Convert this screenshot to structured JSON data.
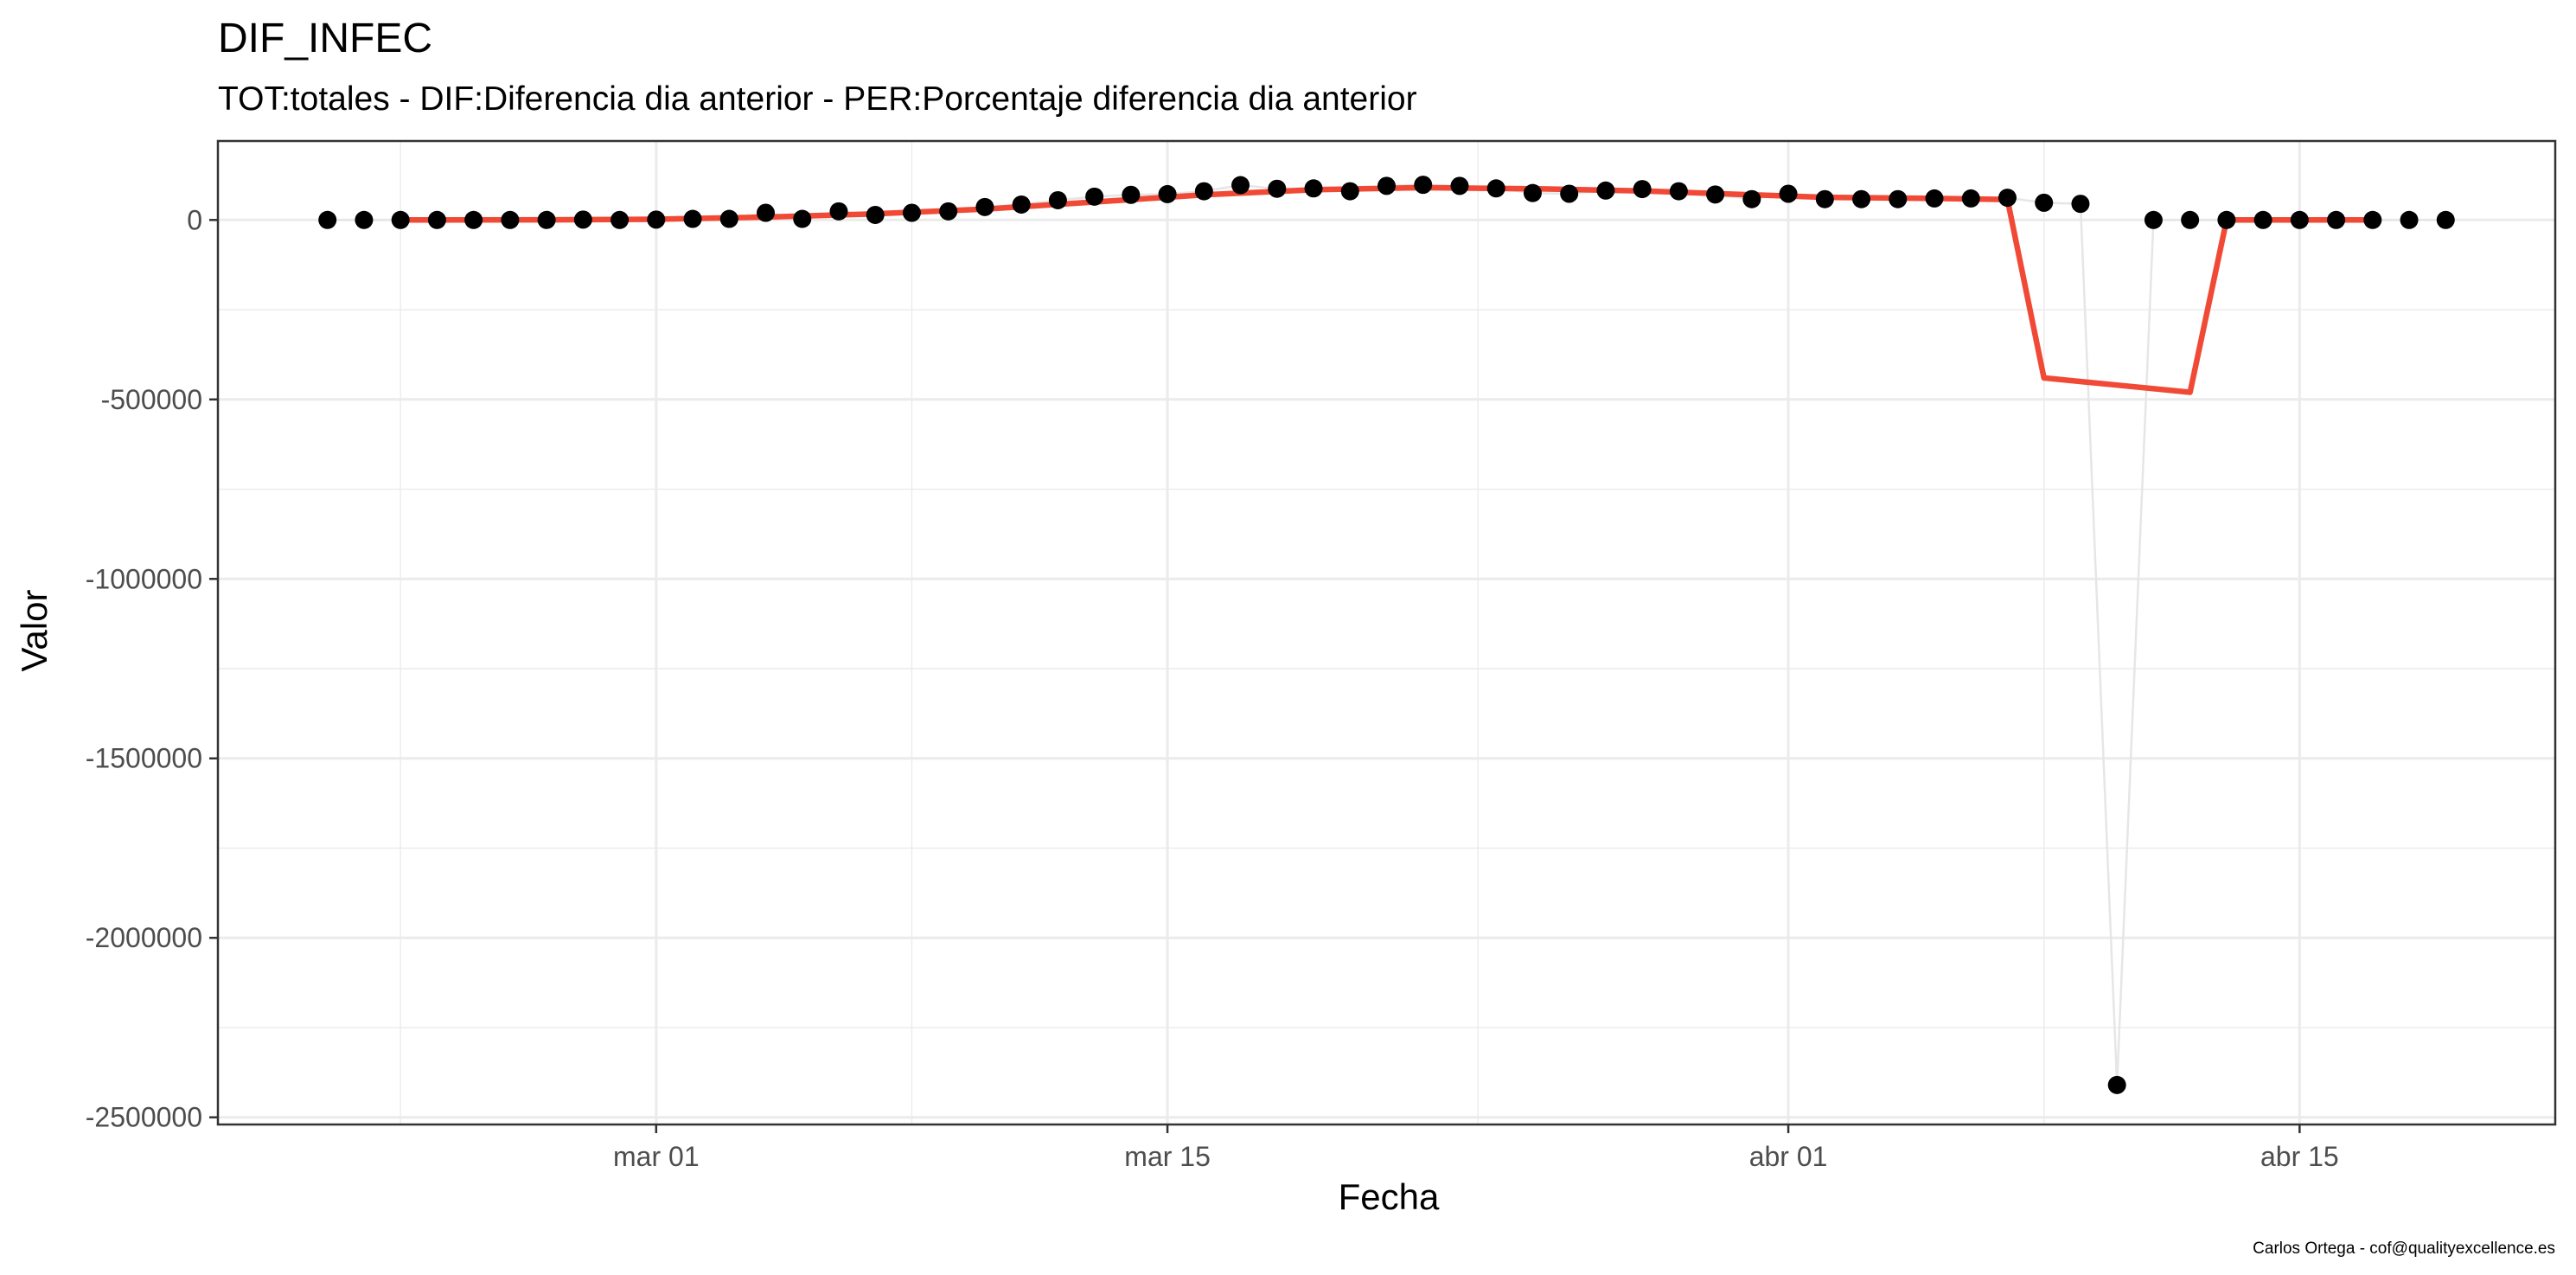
{
  "chart_data": {
    "type": "scatter",
    "title": "DIF_INFEC",
    "subtitle": "TOT:totales - DIF:Diferencia dia anterior - PER:Porcentaje diferencia dia anterior",
    "xlabel": "Fecha",
    "ylabel": "Valor",
    "caption": "Carlos Ortega - cof@qualityexcellence.es",
    "xlim": [
      "2020-02-18",
      "2020-04-22"
    ],
    "ylim": [
      -2520000,
      220000
    ],
    "x_ticks": [
      {
        "value": "2020-03-01",
        "label": "mar 01"
      },
      {
        "value": "2020-03-15",
        "label": "mar 15"
      },
      {
        "value": "2020-04-01",
        "label": "abr 01"
      },
      {
        "value": "2020-04-15",
        "label": "abr 15"
      }
    ],
    "y_ticks": [
      {
        "value": 0,
        "label": "0"
      },
      {
        "value": -500000,
        "label": "-500000"
      },
      {
        "value": -1000000,
        "label": "-1000000"
      },
      {
        "value": -1500000,
        "label": "-1500000"
      },
      {
        "value": -2000000,
        "label": "-2000000"
      },
      {
        "value": -2500000,
        "label": "-2500000"
      }
    ],
    "grid": true,
    "colors": {
      "points": "#000000",
      "connector": "#e6e6e6",
      "smooth": "#f04a37",
      "grid": "#ebebeb",
      "panel_border": "#333333"
    },
    "series": [
      {
        "kind": "points",
        "x": [
          "2020-02-21",
          "2020-02-22",
          "2020-02-23",
          "2020-02-24",
          "2020-02-25",
          "2020-02-26",
          "2020-02-27",
          "2020-02-28",
          "2020-02-29",
          "2020-03-01",
          "2020-03-02",
          "2020-03-03",
          "2020-03-04",
          "2020-03-05",
          "2020-03-06",
          "2020-03-07",
          "2020-03-08",
          "2020-03-09",
          "2020-03-10",
          "2020-03-11",
          "2020-03-12",
          "2020-03-13",
          "2020-03-14",
          "2020-03-15",
          "2020-03-16",
          "2020-03-17",
          "2020-03-18",
          "2020-03-19",
          "2020-03-20",
          "2020-03-21",
          "2020-03-22",
          "2020-03-23",
          "2020-03-24",
          "2020-03-25",
          "2020-03-26",
          "2020-03-27",
          "2020-03-28",
          "2020-03-29",
          "2020-03-30",
          "2020-03-31",
          "2020-04-01",
          "2020-04-02",
          "2020-04-03",
          "2020-04-04",
          "2020-04-05",
          "2020-04-06",
          "2020-04-07",
          "2020-04-08",
          "2020-04-09",
          "2020-04-10",
          "2020-04-11",
          "2020-04-12",
          "2020-04-13",
          "2020-04-14",
          "2020-04-15",
          "2020-04-16",
          "2020-04-17",
          "2020-04-18",
          "2020-04-19"
        ],
        "y": [
          0,
          0,
          0,
          0,
          0,
          0,
          0,
          1000,
          0,
          1000,
          3000,
          3000,
          20000,
          3000,
          24000,
          14000,
          20000,
          24000,
          36000,
          43000,
          55000,
          65000,
          70000,
          72000,
          80000,
          97000,
          87000,
          88000,
          80000,
          95000,
          98000,
          95000,
          88000,
          75000,
          73000,
          82000,
          86000,
          80000,
          71000,
          58000,
          73000,
          58000,
          58000,
          58000,
          60000,
          60000,
          62000,
          48000,
          45000,
          -2410000,
          0,
          0,
          0,
          0,
          0,
          0,
          0,
          0,
          0
        ]
      },
      {
        "kind": "smooth",
        "x": [
          "2020-02-23",
          "2020-02-27",
          "2020-03-01",
          "2020-03-04",
          "2020-03-07",
          "2020-03-10",
          "2020-03-13",
          "2020-03-16",
          "2020-03-19",
          "2020-03-22",
          "2020-03-25",
          "2020-03-28",
          "2020-03-31",
          "2020-04-02",
          "2020-04-05",
          "2020-04-07",
          "2020-04-08",
          "2020-04-10",
          "2020-04-12",
          "2020-04-13",
          "2020-04-14",
          "2020-04-17"
        ],
        "y": [
          0,
          500,
          2000,
          8000,
          17000,
          30000,
          50000,
          70000,
          84000,
          90000,
          87000,
          81000,
          70000,
          63000,
          60000,
          57000,
          -440000,
          -460000,
          -480000,
          0,
          0,
          0
        ]
      }
    ]
  }
}
